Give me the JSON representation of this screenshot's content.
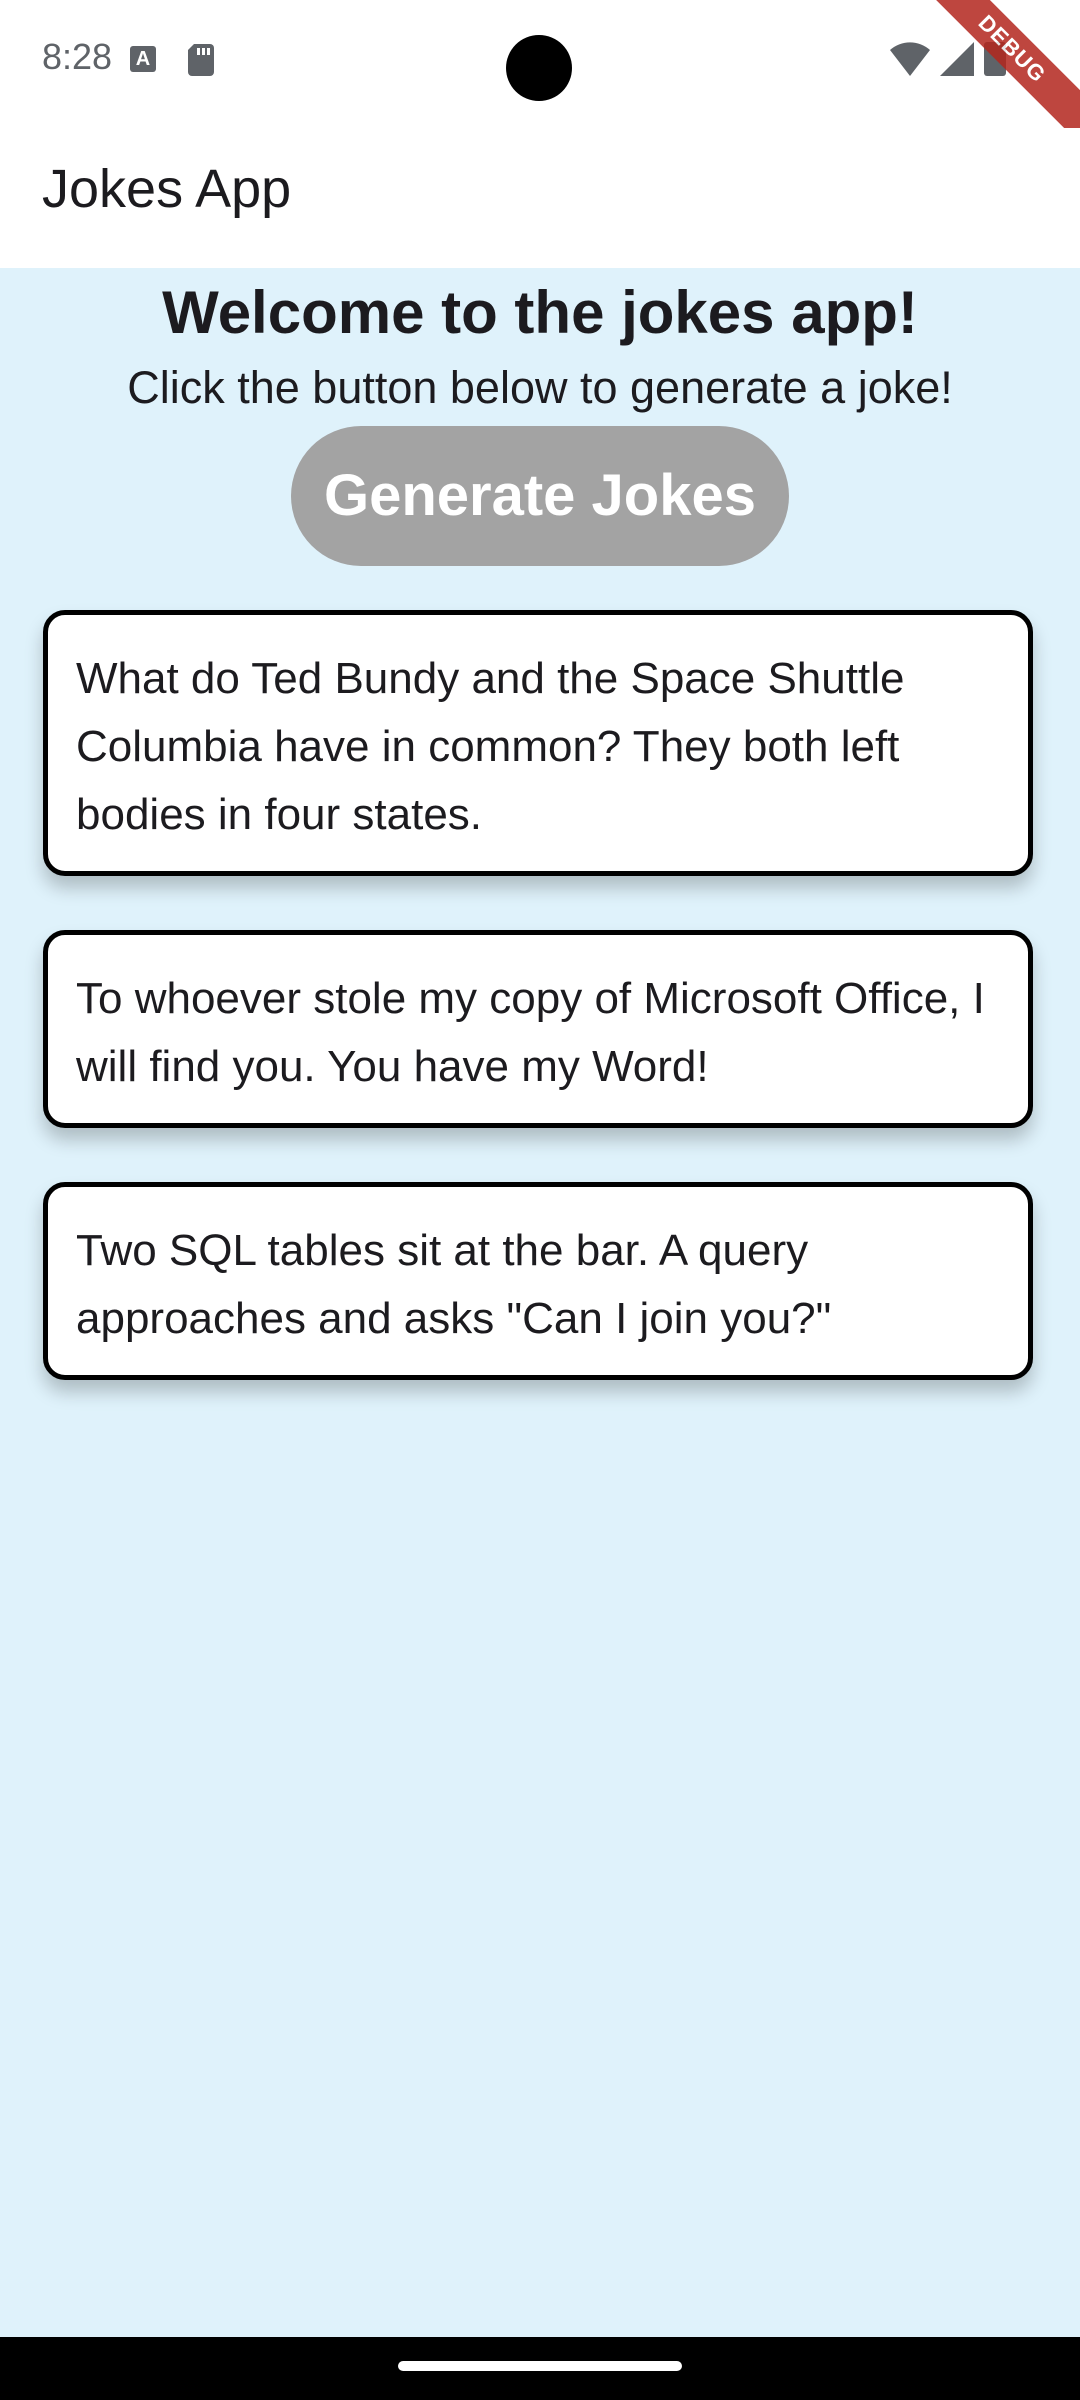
{
  "status_bar": {
    "time": "8:28",
    "icons": [
      "keyboard-a-icon",
      "sd-card-icon",
      "wifi-icon",
      "signal-icon",
      "battery-icon"
    ]
  },
  "debug_banner": "DEBUG",
  "app_bar": {
    "title": "Jokes App"
  },
  "main": {
    "welcome_title": "Welcome to the jokes app!",
    "welcome_subtitle": "Click the button below to generate a joke!",
    "generate_button_label": "Generate Jokes",
    "jokes": [
      {
        "text": "What do Ted Bundy and the Space Shuttle Columbia have in common? They both left bodies in four states."
      },
      {
        "text": "To whoever stole my copy of Microsoft Office, I will find you. You have my Word!"
      },
      {
        "text": "Two SQL tables sit at the bar. A query approaches and asks \"Can I join you?\""
      }
    ]
  },
  "colors": {
    "content_background": "#dff2fb",
    "button_background": "#a3a3a3",
    "card_border": "#000000",
    "debug_ribbon": "#b3261e"
  }
}
